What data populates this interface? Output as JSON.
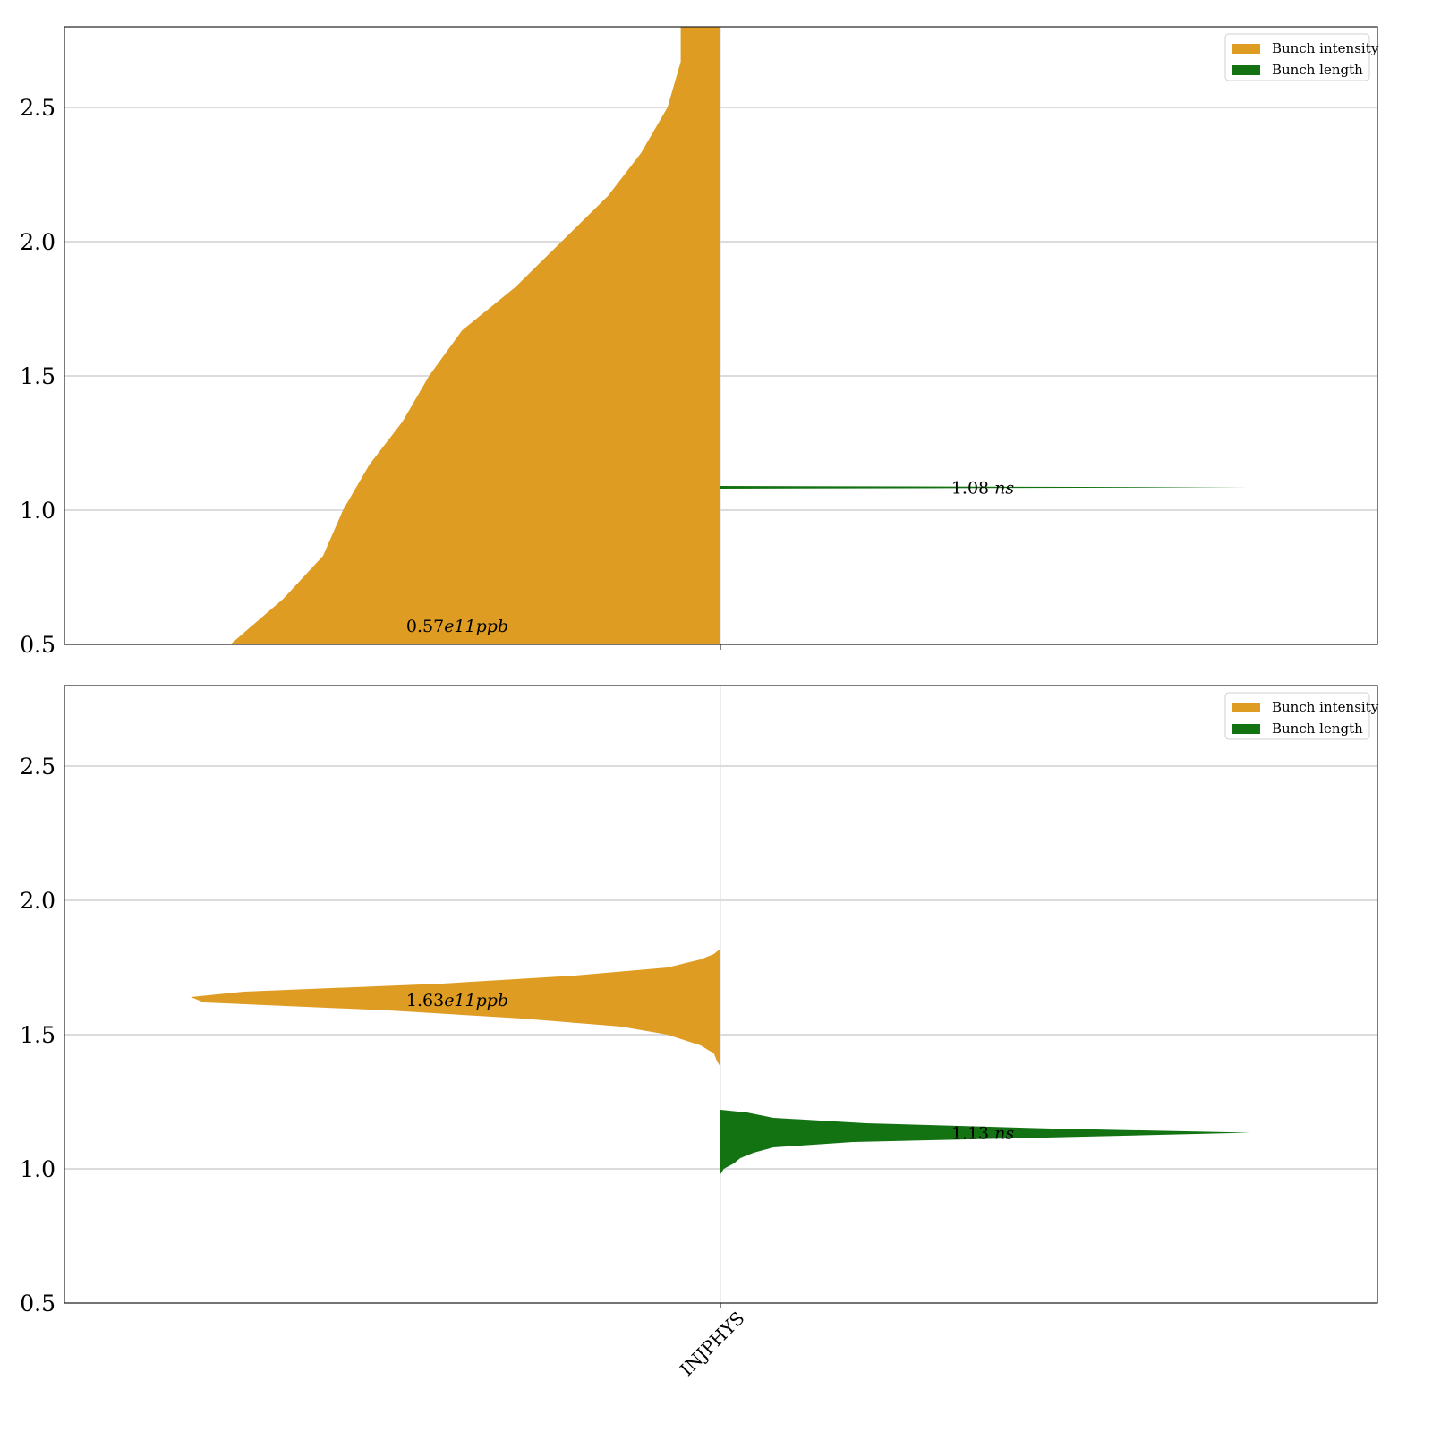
{
  "chart_data": [
    {
      "type": "violin",
      "panel": "top",
      "category": "INJPHYS",
      "ylim": [
        0.5,
        2.8
      ],
      "yticks": [
        0.5,
        1.0,
        1.5,
        2.0,
        2.5
      ],
      "ytick_labels": [
        "0.5",
        "1.0",
        "1.5",
        "2.0",
        "2.5"
      ],
      "grid": true,
      "legend": {
        "placement": "top-right",
        "entries": [
          {
            "label": "Bunch intensity",
            "color": "#de9c22"
          },
          {
            "label": "Bunch length",
            "color": "#137313"
          }
        ]
      },
      "series": [
        {
          "name": "Bunch intensity",
          "side": "left",
          "color": "#de9c22",
          "median": 0.57,
          "annotation": "0.57e11ppb",
          "profile": [
            [
              0.5,
              0.74
            ],
            [
              0.67,
              0.66
            ],
            [
              0.83,
              0.6
            ],
            [
              1.0,
              0.57
            ],
            [
              1.17,
              0.53
            ],
            [
              1.33,
              0.48
            ],
            [
              1.5,
              0.44
            ],
            [
              1.67,
              0.39
            ],
            [
              1.83,
              0.31
            ],
            [
              2.0,
              0.24
            ],
            [
              2.17,
              0.17
            ],
            [
              2.33,
              0.12
            ],
            [
              2.5,
              0.08
            ],
            [
              2.67,
              0.06
            ],
            [
              2.8,
              0.06
            ]
          ]
        },
        {
          "name": "Bunch length",
          "side": "right",
          "color": "#137313",
          "median": 1.085,
          "annotation": "1.08 ns",
          "profile": [
            [
              1.08,
              0.0
            ],
            [
              1.085,
              0.8
            ],
            [
              1.09,
              0.0
            ]
          ]
        }
      ]
    },
    {
      "type": "violin",
      "panel": "bottom",
      "category": "INJPHYS",
      "ylim": [
        0.5,
        2.8
      ],
      "yticks": [
        0.5,
        1.0,
        1.5,
        2.0,
        2.5
      ],
      "ytick_labels": [
        "0.5",
        "1.0",
        "1.5",
        "2.0",
        "2.5"
      ],
      "xtick_labels": [
        "INJPHYS"
      ],
      "grid": true,
      "legend": {
        "placement": "top-right",
        "entries": [
          {
            "label": "Bunch intensity",
            "color": "#de9c22"
          },
          {
            "label": "Bunch length",
            "color": "#137313"
          }
        ]
      },
      "series": [
        {
          "name": "Bunch intensity",
          "side": "left",
          "color": "#de9c22",
          "median": 1.63,
          "annotation": "1.63e11ppb",
          "profile": [
            [
              1.38,
              0.0
            ],
            [
              1.4,
              0.005
            ],
            [
              1.43,
              0.01
            ],
            [
              1.46,
              0.03
            ],
            [
              1.5,
              0.08
            ],
            [
              1.53,
              0.15
            ],
            [
              1.56,
              0.3
            ],
            [
              1.59,
              0.5
            ],
            [
              1.62,
              0.78
            ],
            [
              1.64,
              0.8
            ],
            [
              1.66,
              0.72
            ],
            [
              1.69,
              0.42
            ],
            [
              1.72,
              0.22
            ],
            [
              1.75,
              0.08
            ],
            [
              1.78,
              0.03
            ],
            [
              1.8,
              0.01
            ],
            [
              1.82,
              0.0
            ]
          ]
        },
        {
          "name": "Bunch length",
          "side": "right",
          "color": "#137313",
          "median": 1.135,
          "annotation": "1.13 ns",
          "profile": [
            [
              0.98,
              0.0
            ],
            [
              1.0,
              0.005
            ],
            [
              1.02,
              0.02
            ],
            [
              1.04,
              0.03
            ],
            [
              1.06,
              0.05
            ],
            [
              1.08,
              0.08
            ],
            [
              1.1,
              0.2
            ],
            [
              1.12,
              0.55
            ],
            [
              1.135,
              0.8
            ],
            [
              1.15,
              0.5
            ],
            [
              1.17,
              0.22
            ],
            [
              1.19,
              0.08
            ],
            [
              1.21,
              0.04
            ],
            [
              1.22,
              0.0
            ]
          ]
        }
      ]
    }
  ]
}
